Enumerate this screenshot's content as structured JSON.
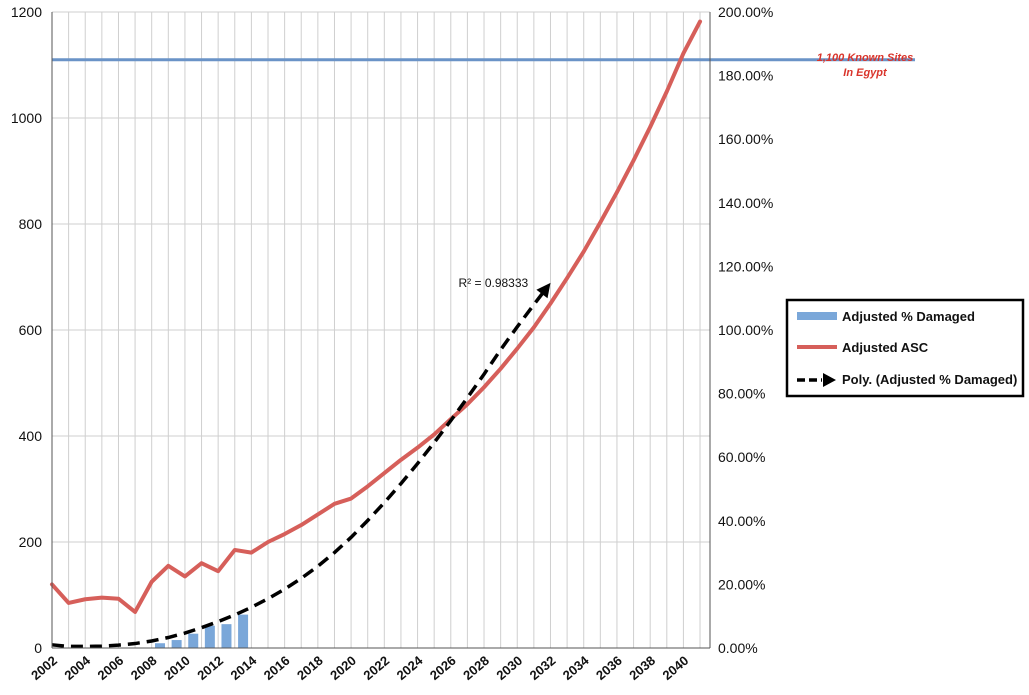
{
  "chart_data": {
    "type": "line",
    "x": [
      2002,
      2003,
      2004,
      2005,
      2006,
      2007,
      2008,
      2009,
      2010,
      2011,
      2012,
      2013,
      2014,
      2015,
      2016,
      2017,
      2018,
      2019,
      2020,
      2021,
      2022,
      2023,
      2024,
      2025,
      2026,
      2027,
      2028,
      2029,
      2030,
      2031,
      2032,
      2033,
      2034,
      2035,
      2036,
      2037,
      2038,
      2039,
      2040,
      2041
    ],
    "x_ticks": [
      "2002",
      "2004",
      "2006",
      "2008",
      "2010",
      "2012",
      "2014",
      "2016",
      "2018",
      "2020",
      "2022",
      "2024",
      "2026",
      "2028",
      "2030",
      "2032",
      "2034",
      "2036",
      "2038",
      "2040"
    ],
    "y_left_ticks": [
      "0",
      "200",
      "400",
      "600",
      "800",
      "1000",
      "1200"
    ],
    "y_right_ticks": [
      "0.00%",
      "20.00%",
      "40.00%",
      "60.00%",
      "80.00%",
      "100.00%",
      "120.00%",
      "140.00%",
      "160.00%",
      "180.00%",
      "200.00%"
    ],
    "ylim_left": [
      0,
      1200
    ],
    "ylim_right": [
      0,
      200
    ],
    "grid": true,
    "legend_position": "right",
    "series": [
      {
        "name": "Adjusted % Damaged",
        "kind": "bar",
        "axis": "right",
        "color": "#7aa7d9",
        "x": [
          2008,
          2009,
          2010,
          2011,
          2012,
          2013
        ],
        "values": [
          1.5,
          2.5,
          4.5,
          7.0,
          7.5,
          10.5
        ]
      },
      {
        "name": "Adjusted ASC",
        "kind": "line",
        "axis": "left",
        "color": "#d65f5a",
        "values": [
          120,
          85,
          92,
          95,
          93,
          68,
          125,
          155,
          135,
          160,
          145,
          185,
          180,
          200,
          215,
          232,
          252,
          272,
          282,
          305,
          330,
          355,
          378,
          403,
          432,
          460,
          492,
          527,
          565,
          605,
          650,
          698,
          748,
          803,
          860,
          920,
          983,
          1050,
          1122,
          1182
        ]
      },
      {
        "name": "Poly. (Adjusted % Damaged)",
        "kind": "trend",
        "axis": "right",
        "color": "#000000",
        "x": [
          2002,
          2003,
          2004,
          2005,
          2006,
          2007,
          2008,
          2009,
          2010,
          2011,
          2012,
          2013,
          2014,
          2015,
          2016,
          2017,
          2018,
          2019,
          2020,
          2021,
          2022,
          2023,
          2024,
          2025,
          2026,
          2027,
          2028,
          2029,
          2030,
          2031,
          2032
        ],
        "values": [
          1.0,
          0.5,
          0.5,
          0.6,
          0.9,
          1.4,
          2.2,
          3.3,
          4.7,
          6.4,
          8.3,
          10.4,
          12.8,
          15.5,
          18.5,
          21.9,
          25.7,
          30.0,
          34.8,
          40.1,
          45.7,
          51.7,
          58.0,
          64.6,
          71.5,
          78.7,
          86.1,
          93.8,
          101.0,
          108.0,
          114.8
        ]
      }
    ],
    "reference_line": {
      "value": 1110,
      "axis": "left",
      "color": "#6a93c7",
      "label_line1": "1,100 Known Sites",
      "label_line2": "In Egypt"
    },
    "r_squared_label": "R² = 0.98333"
  }
}
